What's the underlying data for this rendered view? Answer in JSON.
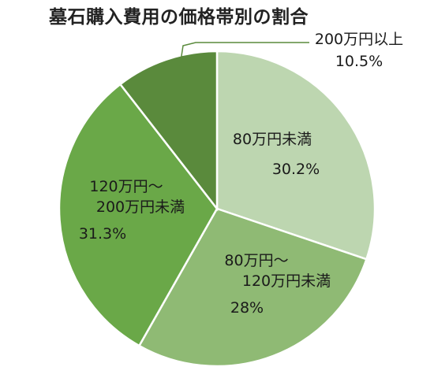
{
  "chart_data": {
    "type": "pie",
    "title": "墓石購入費用の価格帯別の割合",
    "slices": [
      {
        "category_lines": [
          "80万円未満"
        ],
        "value_label": "30.2%",
        "value": 30.2,
        "color": "#bdd6b0"
      },
      {
        "category_lines": [
          "80万円～",
          "120万円未満"
        ],
        "value_label": "28%",
        "value": 28.0,
        "color": "#8fba74"
      },
      {
        "category_lines": [
          "120万円～",
          "200万円未満"
        ],
        "value_label": "31.3%",
        "value": 31.3,
        "color": "#6aa848"
      },
      {
        "category_lines": [
          "200万円以上"
        ],
        "value_label": "10.5%",
        "value": 10.5,
        "color": "#5a8a3c"
      }
    ],
    "start_angle_deg": 0,
    "direction": "clockwise",
    "legend": "none",
    "label_placement": "inside, with leader line for smallest slice"
  }
}
